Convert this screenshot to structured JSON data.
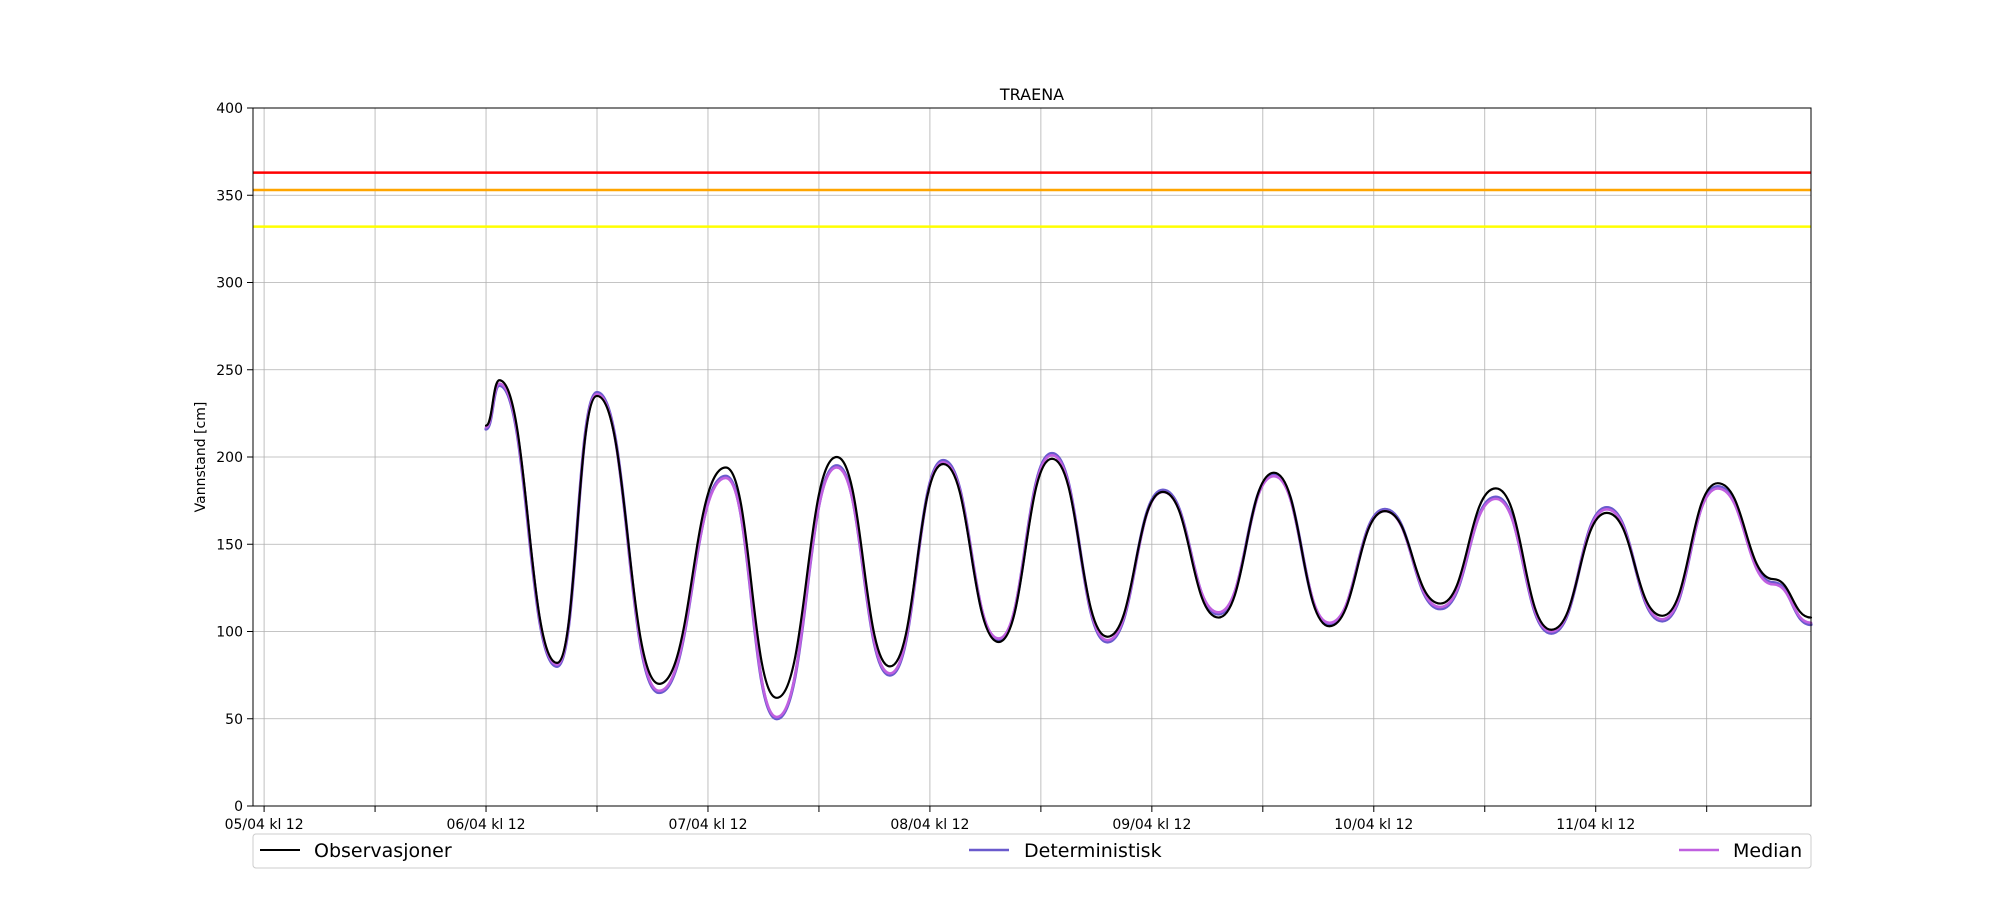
{
  "chart_data": {
    "type": "line",
    "title": "TRAENA",
    "xlabel": "",
    "ylabel": "Vannstand [cm]",
    "ylim": [
      0,
      400
    ],
    "yticks": [
      0,
      50,
      100,
      150,
      200,
      250,
      300,
      350,
      400
    ],
    "xlim": [
      -0.05,
      6.97
    ],
    "xtick_positions": [
      0,
      0.5,
      1,
      1.5,
      2,
      2.5,
      3,
      3.5,
      4,
      4.5,
      5,
      5.5,
      6,
      6.5
    ],
    "xtick_labels": [
      "05/04 kl 12",
      "",
      "06/04 kl 12",
      "",
      "07/04 kl 12",
      "",
      "08/04 kl 12",
      "",
      "09/04 kl 12",
      "",
      "10/04 kl 12",
      "",
      "11/04 kl 12",
      ""
    ],
    "grid": true,
    "legend_position": "below",
    "thresholds": [
      {
        "value": 363,
        "color": "#ff0000"
      },
      {
        "value": 353,
        "color": "#ffa500"
      },
      {
        "value": 332,
        "color": "#ffff00"
      }
    ],
    "series": [
      {
        "name": "Observasjoner",
        "color": "#000000",
        "x": [
          1.0,
          1.06,
          1.32,
          1.5,
          1.78,
          2.08,
          2.31,
          2.58,
          2.82,
          3.06,
          3.31,
          3.55,
          3.8,
          4.05,
          4.3,
          4.55,
          4.8,
          5.05,
          5.3,
          5.55,
          5.8,
          6.05,
          6.3,
          6.55,
          6.8,
          6.97
        ],
        "y": [
          218,
          244,
          82,
          235,
          70,
          194,
          62,
          200,
          80,
          196,
          94,
          199,
          97,
          180,
          108,
          191,
          103,
          169,
          116,
          182,
          101,
          168,
          109,
          185,
          130,
          108
        ]
      },
      {
        "name": "Deterministisk",
        "color": "#6a5acd",
        "x": [
          1.0,
          1.06,
          1.32,
          1.5,
          1.78,
          2.08,
          2.31,
          2.58,
          2.82,
          3.06,
          3.31,
          3.55,
          3.8,
          4.05,
          4.3,
          4.55,
          4.8,
          5.05,
          5.3,
          5.55,
          5.8,
          6.05,
          6.3,
          6.55,
          6.8,
          6.97
        ],
        "y": [
          216,
          241,
          80,
          237,
          65,
          189,
          50,
          195,
          75,
          198,
          95,
          202,
          94,
          181,
          110,
          190,
          104,
          170,
          113,
          177,
          99,
          171,
          106,
          183,
          128,
          104
        ]
      },
      {
        "name": "Median",
        "color": "#c060e0",
        "x": [
          1.0,
          1.06,
          1.32,
          1.5,
          1.78,
          2.08,
          2.31,
          2.58,
          2.82,
          3.06,
          3.31,
          3.55,
          3.8,
          4.05,
          4.3,
          4.55,
          4.8,
          5.05,
          5.3,
          5.55,
          5.8,
          6.05,
          6.3,
          6.55,
          6.8,
          6.97
        ],
        "y": [
          217,
          242,
          81,
          236,
          66,
          188,
          51,
          194,
          76,
          197,
          96,
          201,
          95,
          180,
          111,
          189,
          105,
          169,
          114,
          176,
          100,
          170,
          107,
          182,
          127,
          105
        ]
      }
    ]
  }
}
